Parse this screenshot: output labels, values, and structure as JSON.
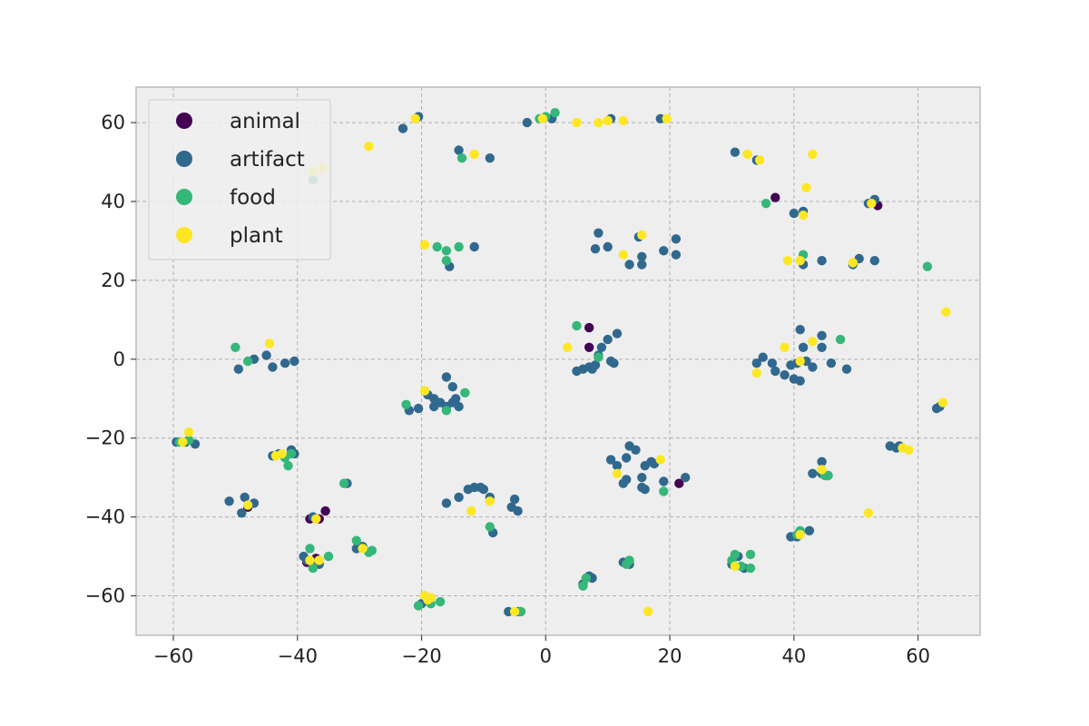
{
  "chart_data": {
    "type": "scatter",
    "title": "",
    "xlabel": "",
    "ylabel": "",
    "xlim": [
      -66,
      70
    ],
    "ylim": [
      -70,
      69
    ],
    "xticks": [
      -60,
      -40,
      -20,
      0,
      20,
      40,
      60
    ],
    "yticks": [
      -60,
      -40,
      -20,
      0,
      20,
      40,
      60
    ],
    "xtick_labels": [
      "−60",
      "−40",
      "−20",
      "0",
      "20",
      "40",
      "60"
    ],
    "ytick_labels": [
      "−60",
      "−40",
      "−20",
      "0",
      "20",
      "40",
      "60"
    ],
    "grid": true,
    "legend_position": "top-left",
    "colors": {
      "animal": "#440154",
      "artifact": "#31688e",
      "food": "#35b779",
      "plant": "#fde725",
      "plot_background": "#eeeeee",
      "grid": "#b0b0b0",
      "frame": "#bcbcbc"
    },
    "series": [
      {
        "name": "animal",
        "color": "#440154",
        "points": [
          [
            7,
            8
          ],
          [
            7,
            3
          ],
          [
            37,
            41
          ],
          [
            53.5,
            39
          ],
          [
            21.5,
            -31.5
          ],
          [
            -38,
            -40.5
          ],
          [
            -35.5,
            -38.5
          ],
          [
            -38.5,
            -51.5
          ],
          [
            -37,
            -50.5
          ],
          [
            -48,
            -37.5
          ],
          [
            -36.5,
            -40.5
          ]
        ]
      },
      {
        "name": "artifact",
        "color": "#31688e",
        "points": [
          [
            -23,
            58.5
          ],
          [
            -20.5,
            61.5
          ],
          [
            -14,
            53
          ],
          [
            -9,
            51
          ],
          [
            -3,
            60
          ],
          [
            1,
            61
          ],
          [
            10.5,
            61
          ],
          [
            18.5,
            61
          ],
          [
            30.5,
            52.5
          ],
          [
            34,
            50.5
          ],
          [
            52,
            39.5
          ],
          [
            53,
            40.5
          ],
          [
            40,
            37
          ],
          [
            41.5,
            37.5
          ],
          [
            53,
            25
          ],
          [
            50.5,
            25.5
          ],
          [
            49.5,
            24
          ],
          [
            44.5,
            25
          ],
          [
            41.5,
            24
          ],
          [
            8.5,
            32
          ],
          [
            8,
            28
          ],
          [
            10,
            28.5
          ],
          [
            13.5,
            24
          ],
          [
            15.5,
            26
          ],
          [
            15.5,
            24
          ],
          [
            19,
            27.5
          ],
          [
            21,
            30.5
          ],
          [
            21,
            26.5
          ],
          [
            15,
            31
          ],
          [
            -15.5,
            23.5
          ],
          [
            -11.5,
            28.5
          ],
          [
            -49.5,
            -2.5
          ],
          [
            -47,
            0
          ],
          [
            -45,
            1
          ],
          [
            -44,
            -2
          ],
          [
            -42,
            -1
          ],
          [
            -40.5,
            -0.5
          ],
          [
            -16,
            -4.5
          ],
          [
            -15,
            -7
          ],
          [
            -14.5,
            -10
          ],
          [
            -16,
            -12
          ],
          [
            -17,
            -11
          ],
          [
            -18,
            -10
          ],
          [
            -19,
            -9
          ],
          [
            -20.5,
            -12.5
          ],
          [
            -22,
            -13
          ],
          [
            -14,
            -12
          ],
          [
            -15,
            -11
          ],
          [
            -18,
            -12
          ],
          [
            5,
            -3
          ],
          [
            6,
            -2.5
          ],
          [
            7,
            -2
          ],
          [
            8,
            -1.5
          ],
          [
            9,
            3
          ],
          [
            10,
            5
          ],
          [
            11.5,
            6.5
          ],
          [
            10.5,
            -0.5
          ],
          [
            7.5,
            -2.5
          ],
          [
            11,
            -1
          ],
          [
            8.5,
            1
          ],
          [
            34,
            -1
          ],
          [
            35,
            0.5
          ],
          [
            36.5,
            -1
          ],
          [
            37,
            -3
          ],
          [
            38.5,
            -4
          ],
          [
            40,
            -5
          ],
          [
            41,
            -5.5
          ],
          [
            40.5,
            -1
          ],
          [
            42,
            -0.5
          ],
          [
            41.5,
            3
          ],
          [
            43,
            -2
          ],
          [
            44.5,
            3
          ],
          [
            44.5,
            6
          ],
          [
            46,
            -1
          ],
          [
            48.5,
            -2.5
          ],
          [
            41,
            7.5
          ],
          [
            39.5,
            -1.5
          ],
          [
            -59.5,
            -21
          ],
          [
            -58,
            -21
          ],
          [
            -56.5,
            -21.5
          ],
          [
            -43,
            -24
          ],
          [
            -41,
            -23
          ],
          [
            -40.5,
            -24
          ],
          [
            -44,
            -24.5
          ],
          [
            -38.5,
            -51
          ],
          [
            -37.5,
            -52
          ],
          [
            -36.5,
            -52
          ],
          [
            -39,
            -50
          ],
          [
            -37.5,
            -40
          ],
          [
            -51,
            -36
          ],
          [
            -48.5,
            -35
          ],
          [
            -47,
            -36.5
          ],
          [
            -49,
            -39
          ],
          [
            -32,
            -31.5
          ],
          [
            -30.5,
            -48
          ],
          [
            -29.5,
            -47.5
          ],
          [
            -16,
            -36.5
          ],
          [
            -14,
            -35
          ],
          [
            -12.5,
            -33
          ],
          [
            -11.5,
            -32.5
          ],
          [
            -10.5,
            -32.5
          ],
          [
            -10,
            -33
          ],
          [
            -9,
            -35
          ],
          [
            -8.5,
            -44
          ],
          [
            -5,
            -35.5
          ],
          [
            -4.5,
            -38.5
          ],
          [
            -5.5,
            -37.5
          ],
          [
            6,
            -57
          ],
          [
            7,
            -55
          ],
          [
            7.5,
            -55.5
          ],
          [
            13.5,
            -52
          ],
          [
            12.5,
            -51.5
          ],
          [
            10.5,
            -25.5
          ],
          [
            11.5,
            -27
          ],
          [
            13,
            -25
          ],
          [
            13.5,
            -22
          ],
          [
            14.5,
            -23
          ],
          [
            13,
            -30.5
          ],
          [
            12.5,
            -31.5
          ],
          [
            15.5,
            -30
          ],
          [
            15.5,
            -32.5
          ],
          [
            17,
            -26
          ],
          [
            16,
            -27
          ],
          [
            19,
            -31
          ],
          [
            22.5,
            -30
          ],
          [
            16,
            -33
          ],
          [
            17.5,
            -26.5
          ],
          [
            30,
            -52
          ],
          [
            31,
            -50
          ],
          [
            32,
            -53
          ],
          [
            39.5,
            -45
          ],
          [
            41,
            -44
          ],
          [
            42.5,
            -43.5
          ],
          [
            40.5,
            -45
          ],
          [
            43,
            -29
          ],
          [
            44.5,
            -26
          ],
          [
            45.5,
            -29.5
          ],
          [
            44.5,
            -29
          ],
          [
            55.5,
            -22
          ],
          [
            57,
            -22
          ],
          [
            56.5,
            -22.5
          ],
          [
            63,
            -12.5
          ],
          [
            63.5,
            -12
          ],
          [
            -6,
            -64
          ],
          [
            -4.5,
            -64
          ],
          [
            -20,
            -62
          ]
        ]
      },
      {
        "name": "food",
        "color": "#35b779",
        "points": [
          [
            -37.5,
            45.5
          ],
          [
            -13.5,
            51
          ],
          [
            -1,
            61
          ],
          [
            0,
            61.5
          ],
          [
            1.5,
            62.5
          ],
          [
            35.5,
            39.5
          ],
          [
            41.5,
            26.5
          ],
          [
            61.5,
            23.5
          ],
          [
            -17.5,
            28.5
          ],
          [
            -16,
            27.5
          ],
          [
            -16,
            25
          ],
          [
            -14,
            28.5
          ],
          [
            -50,
            3
          ],
          [
            -48,
            -0.5
          ],
          [
            5,
            8.5
          ],
          [
            8.5,
            0.5
          ],
          [
            47.5,
            5
          ],
          [
            -22.5,
            -11.5
          ],
          [
            -16,
            -13
          ],
          [
            -13,
            -8.5
          ],
          [
            -59,
            -21
          ],
          [
            -57.5,
            -20.5
          ],
          [
            -42,
            -25
          ],
          [
            -41.5,
            -27
          ],
          [
            -41,
            -24
          ],
          [
            -32.5,
            -31.5
          ],
          [
            -38,
            -48
          ],
          [
            -37.5,
            -53
          ],
          [
            -30.5,
            -46
          ],
          [
            -28.5,
            -49
          ],
          [
            -28,
            -48.5
          ],
          [
            -35,
            -50
          ],
          [
            -36.5,
            -51
          ],
          [
            -9,
            -42.5
          ],
          [
            -18.5,
            -62
          ],
          [
            -19.5,
            -60
          ],
          [
            -17,
            -61.5
          ],
          [
            -20.5,
            -62.5
          ],
          [
            -4,
            -64
          ],
          [
            6,
            -57.5
          ],
          [
            6.5,
            -55.5
          ],
          [
            13,
            -52
          ],
          [
            13.5,
            -51
          ],
          [
            30.5,
            -49.5
          ],
          [
            30,
            -51
          ],
          [
            31.5,
            -52.5
          ],
          [
            33,
            -49.5
          ],
          [
            33,
            -53
          ],
          [
            41,
            -43.5
          ],
          [
            40.5,
            -44.5
          ],
          [
            45.5,
            -29.5
          ],
          [
            45,
            -29.5
          ],
          [
            19,
            -33.5
          ]
        ]
      },
      {
        "name": "plant",
        "color": "#fde725",
        "points": [
          [
            -37.5,
            47.5
          ],
          [
            -36,
            48.5
          ],
          [
            -28.5,
            54
          ],
          [
            -21,
            61
          ],
          [
            -11.5,
            52
          ],
          [
            -0.5,
            61
          ],
          [
            5,
            60
          ],
          [
            8.5,
            60
          ],
          [
            10,
            60.5
          ],
          [
            12.5,
            60.5
          ],
          [
            19.5,
            61
          ],
          [
            32.5,
            52
          ],
          [
            34.5,
            50.5
          ],
          [
            43,
            52
          ],
          [
            42,
            43.5
          ],
          [
            41.5,
            36.5
          ],
          [
            52.5,
            39.5
          ],
          [
            39,
            25
          ],
          [
            41,
            25
          ],
          [
            49.5,
            24.5
          ],
          [
            -19.5,
            29
          ],
          [
            12.5,
            26.5
          ],
          [
            15.5,
            31.5
          ],
          [
            64.5,
            12
          ],
          [
            -44.5,
            4
          ],
          [
            3.5,
            3
          ],
          [
            38.5,
            3
          ],
          [
            43,
            4.5
          ],
          [
            41,
            -0.5
          ],
          [
            34,
            -3.5
          ],
          [
            -19.5,
            -8
          ],
          [
            64,
            -11
          ],
          [
            -57.5,
            -18.5
          ],
          [
            -58.5,
            -21
          ],
          [
            -43.5,
            -24.5
          ],
          [
            -42.5,
            -24
          ],
          [
            11.5,
            -29
          ],
          [
            18.5,
            -25.5
          ],
          [
            44.5,
            -28
          ],
          [
            57.5,
            -22.5
          ],
          [
            58.5,
            -23
          ],
          [
            -48,
            -37
          ],
          [
            -9,
            -36
          ],
          [
            -12,
            -38.5
          ],
          [
            -37,
            -40.5
          ],
          [
            -38,
            -51
          ],
          [
            -36.5,
            -51
          ],
          [
            -29.5,
            -48
          ],
          [
            52,
            -39
          ],
          [
            41,
            -44.5
          ],
          [
            30.5,
            -52.5
          ],
          [
            -19.5,
            -60
          ],
          [
            -19,
            -61
          ],
          [
            -18.5,
            -60.5
          ],
          [
            -5,
            -64
          ],
          [
            16.5,
            -64
          ]
        ]
      }
    ]
  }
}
